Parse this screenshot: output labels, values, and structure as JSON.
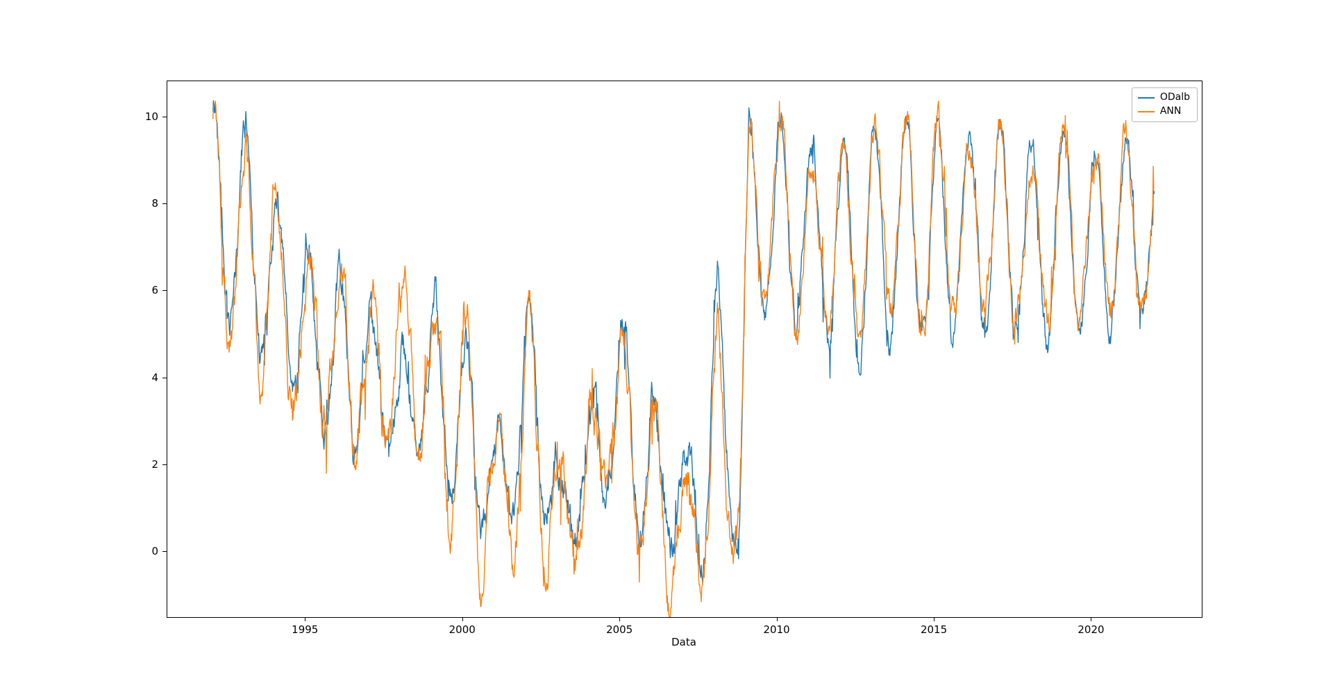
{
  "figure": {
    "background": "#ffffff"
  },
  "chart_data": {
    "type": "line",
    "title": "",
    "xlabel": "Data",
    "ylabel": "",
    "xlim": [
      1990.6,
      2023.5
    ],
    "ylim": [
      -1.5,
      10.83
    ],
    "xticks": [
      1995,
      2000,
      2005,
      2010,
      2015,
      2020
    ],
    "yticks": [
      0,
      2,
      4,
      6,
      8,
      10
    ],
    "x_start": 1992.05,
    "x_end": 2022.0,
    "grid": false,
    "legend_position": "upper right",
    "legend_labels": [
      "ODalb",
      "ANN"
    ],
    "series": [
      {
        "name": "ODalb",
        "color": "#1f77b4",
        "annual_peaks_troughs": [
          [
            1992,
            10.2,
            5.0
          ],
          [
            1993,
            9.8,
            4.8
          ],
          [
            1994,
            7.9,
            3.9
          ],
          [
            1995,
            6.7,
            3.3
          ],
          [
            1996,
            6.0,
            3.0
          ],
          [
            1997,
            5.4,
            2.0
          ],
          [
            1998,
            4.8,
            2.3
          ],
          [
            1999,
            5.9,
            1.6
          ],
          [
            2000,
            4.8,
            0.5
          ],
          [
            2001,
            2.9,
            0.3
          ],
          [
            2002,
            6.4,
            0.9
          ],
          [
            2003,
            1.9,
            0.2
          ],
          [
            2004,
            3.4,
            0.7
          ],
          [
            2005,
            5.5,
            1.5
          ],
          [
            2006,
            3.3,
            0.1
          ],
          [
            2007,
            2.0,
            0.0
          ],
          [
            2008,
            6.2,
            0.3
          ],
          [
            2008.7,
            2.0,
            0.2
          ],
          [
            2009,
            10.1,
            6.0
          ],
          [
            2010,
            10.2,
            5.0
          ],
          [
            2011,
            9.4,
            5.4
          ],
          [
            2012,
            9.2,
            4.5
          ],
          [
            2013,
            9.7,
            4.4
          ],
          [
            2014,
            9.7,
            5.4
          ],
          [
            2015,
            10.0,
            4.5
          ],
          [
            2016,
            9.8,
            5.2
          ],
          [
            2017,
            9.8,
            5.1
          ],
          [
            2018,
            9.3,
            4.6
          ],
          [
            2019,
            9.8,
            5.0
          ],
          [
            2020,
            9.2,
            4.8
          ],
          [
            2021,
            9.5,
            5.4
          ],
          [
            2022,
            8.8,
            5.5
          ]
        ]
      },
      {
        "name": "ANN",
        "color": "#ff7f0e",
        "annual_peaks_troughs": [
          [
            1992,
            10.3,
            5.3
          ],
          [
            1993,
            9.6,
            5.0
          ],
          [
            1994,
            8.1,
            4.0
          ],
          [
            1995,
            6.8,
            3.3
          ],
          [
            1996,
            6.0,
            3.0
          ],
          [
            1997,
            5.5,
            2.2
          ],
          [
            1998,
            5.9,
            2.5
          ],
          [
            1999,
            5.8,
            1.8
          ],
          [
            2000,
            5.6,
            0.2
          ],
          [
            2001,
            2.8,
            -0.9
          ],
          [
            2002,
            6.0,
            1.0
          ],
          [
            2003,
            2.2,
            -0.7
          ],
          [
            2004,
            3.5,
            0.6
          ],
          [
            2005,
            4.6,
            1.6
          ],
          [
            2006,
            3.7,
            -0.5
          ],
          [
            2007,
            2.1,
            -0.8
          ],
          [
            2008,
            5.4,
            -0.5
          ],
          [
            2008.7,
            1.5,
            -0.3
          ],
          [
            2009,
            10.1,
            6.1
          ],
          [
            2010,
            10.3,
            5.3
          ],
          [
            2011,
            9.4,
            5.6
          ],
          [
            2012,
            9.2,
            5.2
          ],
          [
            2013,
            9.6,
            5.3
          ],
          [
            2014,
            9.8,
            5.6
          ],
          [
            2015,
            9.9,
            5.2
          ],
          [
            2016,
            9.7,
            5.4
          ],
          [
            2017,
            9.8,
            5.2
          ],
          [
            2018,
            9.0,
            5.2
          ],
          [
            2019,
            9.5,
            5.3
          ],
          [
            2020,
            9.2,
            5.1
          ],
          [
            2021,
            9.4,
            5.6
          ],
          [
            2022,
            8.8,
            5.5
          ]
        ]
      }
    ]
  }
}
